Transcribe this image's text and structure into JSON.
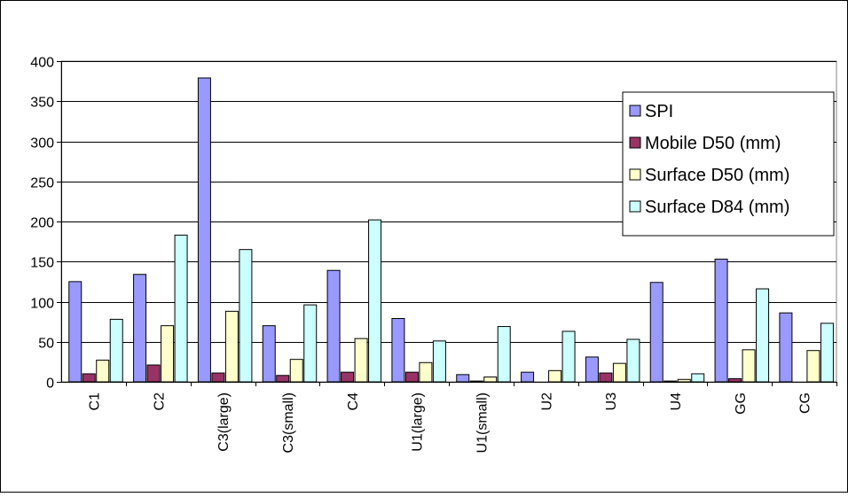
{
  "chart_data": {
    "type": "bar",
    "categories": [
      "C1",
      "C2",
      "C3(large)",
      "C3(small)",
      "C4",
      "U1(large)",
      "U1(small)",
      "U2",
      "U3",
      "U4",
      "GG",
      "CG"
    ],
    "series": [
      {
        "name": "SPI",
        "color": "#9999ff",
        "values": [
          125,
          134,
          379,
          70,
          139,
          79,
          9,
          12,
          31,
          124,
          153,
          86
        ]
      },
      {
        "name": "Mobile D50 (mm)",
        "color": "#993366",
        "values": [
          10,
          21,
          11,
          8,
          12,
          12,
          1,
          0,
          11,
          1,
          4,
          0
        ]
      },
      {
        "name": "Surface D50 (mm)",
        "color": "#ffffcc",
        "values": [
          27,
          70,
          88,
          28,
          54,
          24,
          6,
          14,
          23,
          3,
          40,
          39
        ]
      },
      {
        "name": "Surface D84 (mm)",
        "color": "#ccffff",
        "values": [
          78,
          183,
          165,
          96,
          202,
          51,
          69,
          63,
          53,
          10,
          116,
          73
        ]
      }
    ],
    "ylim": [
      0,
      400
    ],
    "yticks": [
      0,
      50,
      100,
      150,
      200,
      250,
      300,
      350,
      400
    ],
    "grid": true,
    "legend_position": "right"
  }
}
